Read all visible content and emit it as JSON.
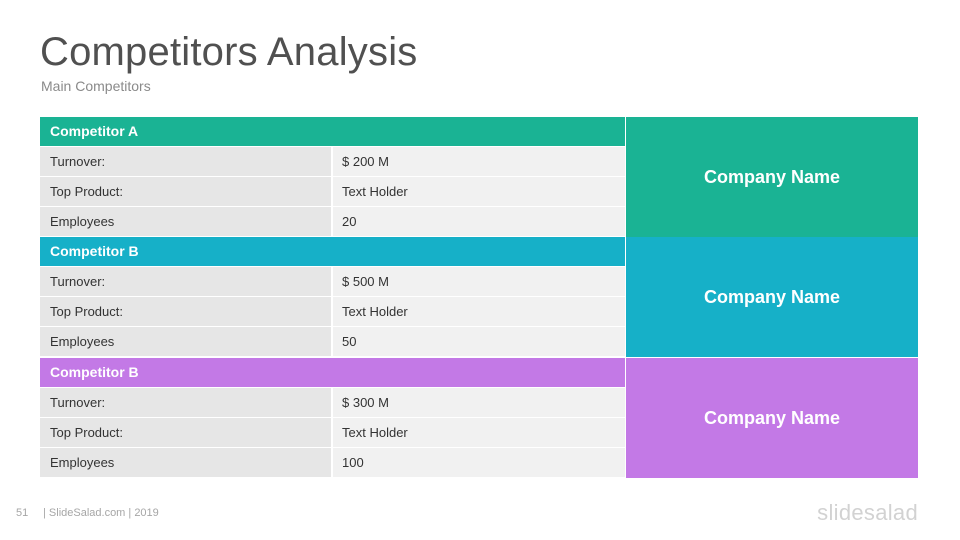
{
  "slide": {
    "title": "Competitors Analysis",
    "subtitle": "Main Competitors",
    "page_number": "51",
    "footer": "| SlideSalad.com | 2019",
    "brand": "slidesalad"
  },
  "colors": {
    "green": "#1ab394",
    "cyan": "#16b0c8",
    "purple": "#c379e6"
  },
  "competitors": [
    {
      "header": "Competitor A",
      "company": "Company Name",
      "rows": [
        {
          "label": "Turnover:",
          "value": "$ 200  M"
        },
        {
          "label": "Top Product:",
          "value": "Text Holder"
        },
        {
          "label": "Employees",
          "value": "20"
        }
      ]
    },
    {
      "header": "Competitor B",
      "company": "Company Name",
      "rows": [
        {
          "label": "Turnover:",
          "value": "$ 500  M"
        },
        {
          "label": "Top Product:",
          "value": "Text Holder"
        },
        {
          "label": "Employees",
          "value": "50"
        }
      ]
    },
    {
      "header": "Competitor B",
      "company": "Company Name",
      "rows": [
        {
          "label": "Turnover:",
          "value": "$ 300  M"
        },
        {
          "label": "Top Product:",
          "value": "Text Holder"
        },
        {
          "label": "Employees",
          "value": "100"
        }
      ]
    }
  ]
}
